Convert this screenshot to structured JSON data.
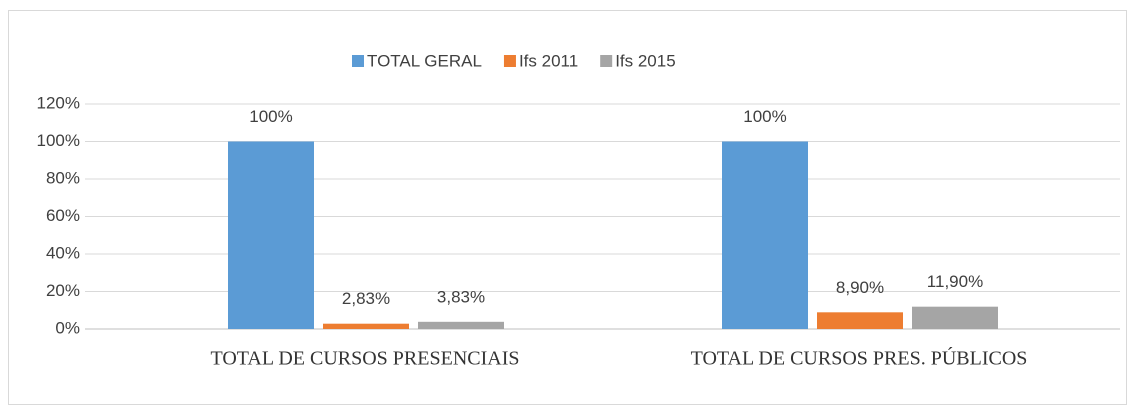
{
  "chart_data": {
    "type": "bar",
    "categories": [
      "TOTAL DE CURSOS PRESENCIAIS",
      "TOTAL DE CURSOS PRES. PÚBLICOS"
    ],
    "series": [
      {
        "name": "TOTAL GERAL",
        "color": "#5b9bd5",
        "values": [
          100,
          100
        ],
        "value_labels": [
          "100%",
          "100%"
        ]
      },
      {
        "name": "Ifs 2011",
        "color": "#ed7d31",
        "values": [
          2.83,
          8.9
        ],
        "value_labels": [
          "2,83%",
          "8,90%"
        ]
      },
      {
        "name": "Ifs 2015",
        "color": "#a5a5a5",
        "values": [
          3.83,
          11.9
        ],
        "value_labels": [
          "3,83%",
          "11,90%"
        ]
      }
    ],
    "ylim": [
      0,
      120
    ],
    "yticks": [
      {
        "value": 0,
        "label": "0%"
      },
      {
        "value": 20,
        "label": "20%"
      },
      {
        "value": 40,
        "label": "40%"
      },
      {
        "value": 60,
        "label": "60%"
      },
      {
        "value": 80,
        "label": "80%"
      },
      {
        "value": 100,
        "label": "100%"
      },
      {
        "value": 120,
        "label": "120%"
      }
    ],
    "grid": true,
    "legend": "top"
  }
}
